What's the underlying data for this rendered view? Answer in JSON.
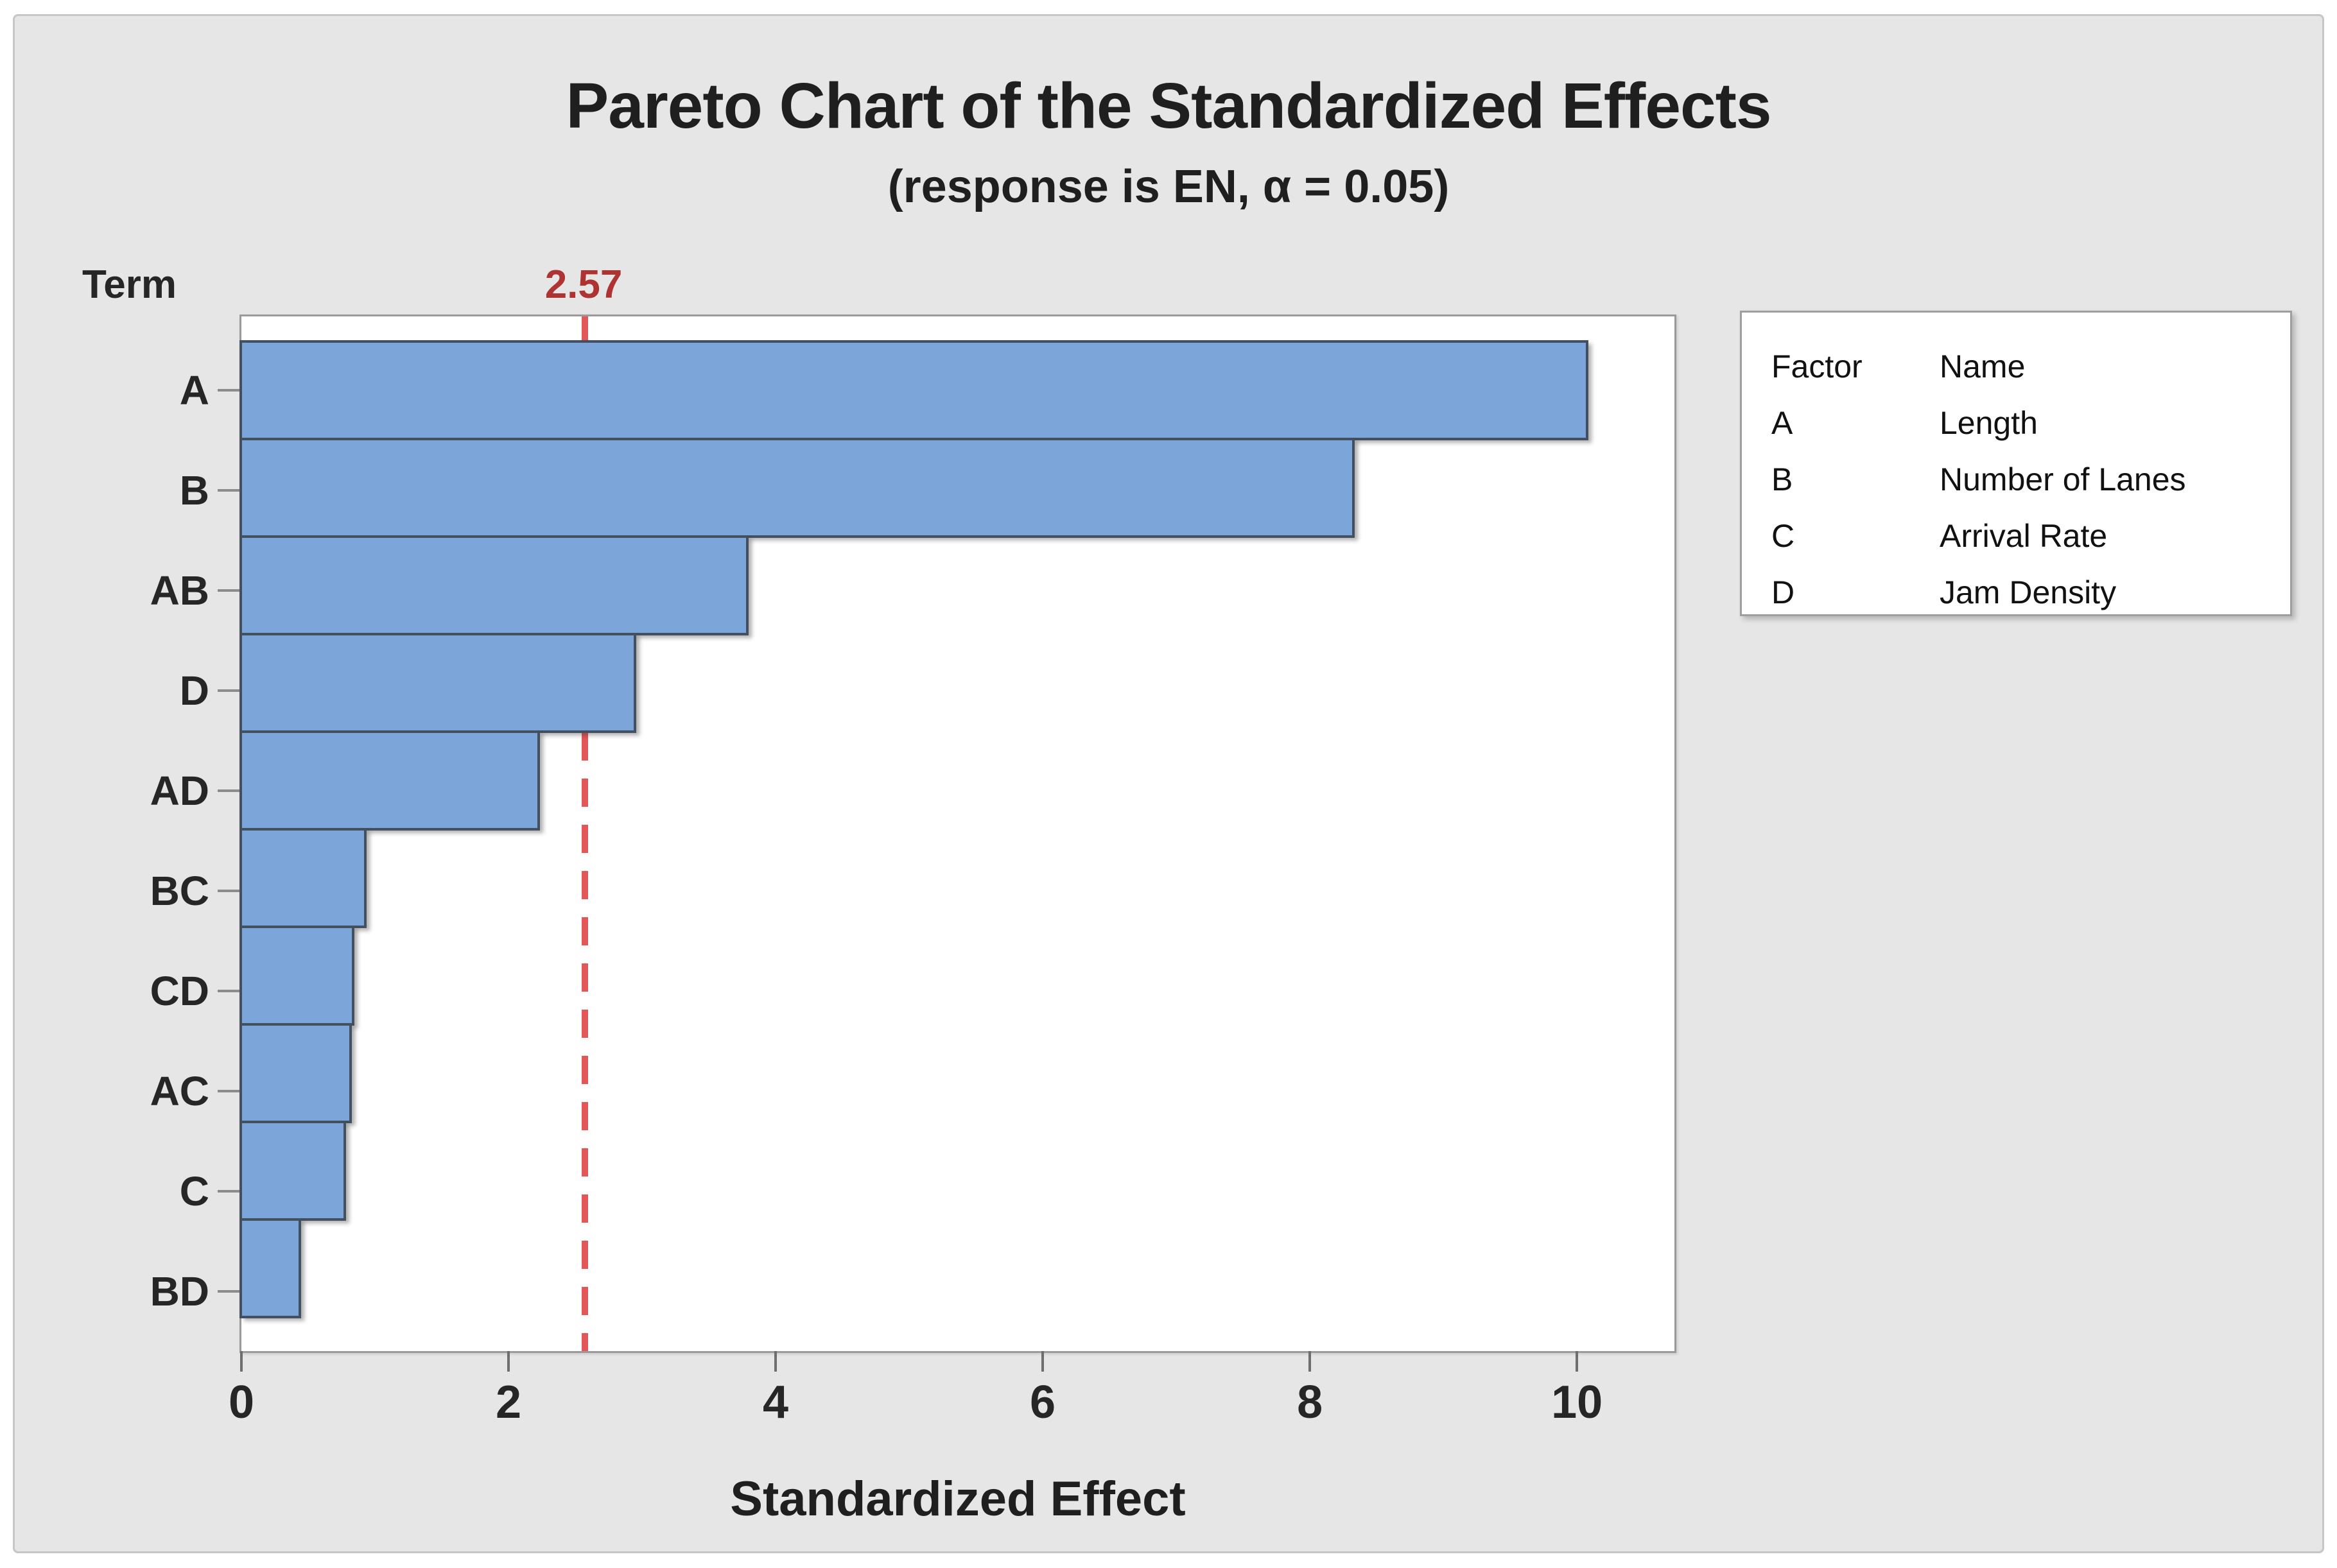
{
  "title": "Pareto Chart of the Standardized Effects",
  "subtitle": "(response is EN, α = 0.05)",
  "term_label": "Term",
  "reference_line": {
    "value": 2.57,
    "label": "2.57"
  },
  "x_axis": {
    "label": "Standardized Effect",
    "ticks": [
      0,
      2,
      4,
      6,
      8,
      10
    ]
  },
  "legend": {
    "headers": {
      "factor": "Factor",
      "name": "Name"
    },
    "rows": [
      {
        "factor": "A",
        "name": "Length"
      },
      {
        "factor": "B",
        "name": "Number of Lanes"
      },
      {
        "factor": "C",
        "name": "Arrival Rate"
      },
      {
        "factor": "D",
        "name": "Jam Density"
      }
    ]
  },
  "chart_data": {
    "type": "bar",
    "orientation": "horizontal",
    "title": "Pareto Chart of the Standardized Effects",
    "subtitle": "(response is EN, α = 0.05)",
    "xlabel": "Standardized Effect",
    "ylabel": "Term",
    "categories": [
      "A",
      "B",
      "AB",
      "D",
      "AD",
      "BC",
      "CD",
      "AC",
      "C",
      "BD"
    ],
    "values": [
      10.1,
      8.35,
      3.81,
      2.97,
      2.25,
      0.95,
      0.86,
      0.84,
      0.8,
      0.46
    ],
    "xlim": [
      0,
      10.73
    ],
    "xticks": [
      0,
      2,
      4,
      6,
      8,
      10
    ],
    "reference_line": 2.57,
    "alpha": 0.05,
    "grid": false,
    "legend_position": "right",
    "bar_color": "#7ca6d9",
    "bar_border_color": "#42505f",
    "reference_line_color": "#e25757",
    "reference_label_color": "#ae3434",
    "background_color": "#e6e6e6",
    "plot_background_color": "#ffffff"
  }
}
